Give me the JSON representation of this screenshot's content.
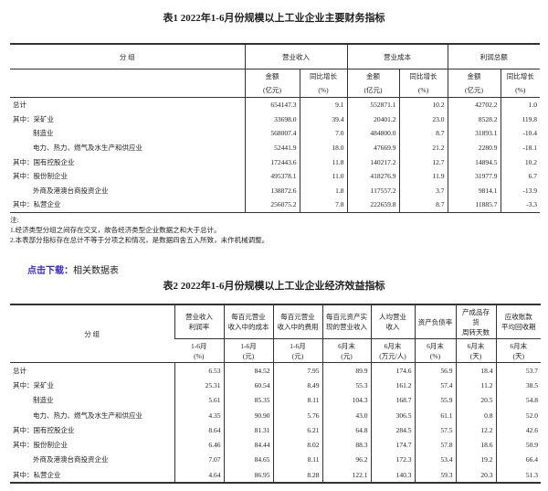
{
  "table1": {
    "title": "表1  2022年1-6月份规模以上工业企业主要财务指标",
    "group_header": "分    组",
    "col_groups": [
      "营业收入",
      "营业成本",
      "利润总额"
    ],
    "sub_headers": [
      {
        "l1": "金额",
        "l2": "(亿元)"
      },
      {
        "l1": "同比增长",
        "l2": "(%)"
      },
      {
        "l1": "金额",
        "l2": "(亿元)"
      },
      {
        "l1": "同比增长",
        "l2": "(%)"
      },
      {
        "l1": "金额",
        "l2": "(亿元)"
      },
      {
        "l1": "同比增长",
        "l2": "(%)"
      }
    ],
    "rows": [
      {
        "label": "总计",
        "indent": false,
        "values": [
          "654147.3",
          "9.1",
          "552871.1",
          "10.2",
          "42702.2",
          "1.0"
        ]
      },
      {
        "label": "其中：采矿业",
        "indent": false,
        "values": [
          "33698.0",
          "39.4",
          "20401.2",
          "23.0",
          "8528.2",
          "119.8"
        ]
      },
      {
        "label": "制造业",
        "indent": true,
        "values": [
          "568007.4",
          "7.0",
          "484800.0",
          "8.7",
          "31893.1",
          "-10.4"
        ]
      },
      {
        "label": "电力、热力、燃气及水生产和供应业",
        "indent": true,
        "values": [
          "52441.9",
          "18.0",
          "47669.9",
          "21.2",
          "2280.9",
          "-18.1"
        ]
      },
      {
        "label": "其中：国有控股企业",
        "indent": false,
        "values": [
          "172443.6",
          "11.8",
          "140217.2",
          "12.7",
          "14894.5",
          "10.2"
        ]
      },
      {
        "label": "其中：股份制企业",
        "indent": false,
        "values": [
          "495378.1",
          "11.0",
          "418276.9",
          "11.9",
          "31977.9",
          "6.7"
        ]
      },
      {
        "label": "外商及港澳台商投资企业",
        "indent": true,
        "values": [
          "138872.6",
          "1.8",
          "117557.2",
          "3.7",
          "9814.1",
          "-13.9"
        ]
      },
      {
        "label": "其中：私营企业",
        "indent": false,
        "values": [
          "256075.2",
          "7.8",
          "222659.8",
          "8.7",
          "11885.7",
          "-3.3"
        ]
      }
    ],
    "notes": [
      "注:",
      "1.经济类型分组之间存在交叉，故各经济类型企业数据之和大于总计。",
      "2.本表部分指标存在总计不等于分项之和情况，是数据四舍五入所致，未作机械调整。"
    ]
  },
  "download": {
    "link_label": "点击下载：",
    "text": "相关数据表"
  },
  "table2": {
    "title": "表2  2022年1-6月份规模以上工业企业经济效益指标",
    "group_header": "分    组",
    "headers": [
      {
        "l1": "营业收入",
        "l2": "利润率",
        "p1": "1-6月",
        "p2": "(%)"
      },
      {
        "l1": "每百元营业",
        "l2": "收入中的成本",
        "p1": "1-6月",
        "p2": "(元)"
      },
      {
        "l1": "每百元营业",
        "l2": "收入中的费用",
        "p1": "1-6月",
        "p2": "(元)"
      },
      {
        "l1": "每百元资产实",
        "l2": "现的营业收入",
        "p1": "6月末",
        "p2": "(元)"
      },
      {
        "l1": "人均营业",
        "l2": "收入",
        "p1": "6月末",
        "p2": "(万元/人)"
      },
      {
        "l1": "资产负债率",
        "l2": "",
        "p1": "6月末",
        "p2": "(%)"
      },
      {
        "l1": "产成品存货",
        "l2": "周转天数",
        "p1": "6月末",
        "p2": "(天)"
      },
      {
        "l1": "应收账款",
        "l2": "平均回收期",
        "p1": "6月末",
        "p2": "(天)"
      }
    ],
    "rows": [
      {
        "label": "总计",
        "indent": false,
        "values": [
          "6.53",
          "84.52",
          "7.95",
          "89.9",
          "174.6",
          "56.9",
          "18.4",
          "53.7"
        ]
      },
      {
        "label": "其中：采矿业",
        "indent": false,
        "values": [
          "25.31",
          "60.54",
          "8.49",
          "55.3",
          "161.2",
          "57.4",
          "11.2",
          "38.5"
        ]
      },
      {
        "label": "制造业",
        "indent": true,
        "values": [
          "5.61",
          "85.35",
          "8.11",
          "104.3",
          "168.7",
          "55.9",
          "20.5",
          "54.8"
        ]
      },
      {
        "label": "电力、热力、燃气及水生产和供应业",
        "indent": true,
        "values": [
          "4.35",
          "90.90",
          "5.76",
          "43.0",
          "306.5",
          "61.1",
          "0.8",
          "52.0"
        ]
      },
      {
        "label": "其中：国有控股企业",
        "indent": false,
        "values": [
          "8.64",
          "81.31",
          "6.21",
          "64.8",
          "284.5",
          "57.5",
          "12.2",
          "42.6"
        ]
      },
      {
        "label": "其中：股份制企业",
        "indent": false,
        "values": [
          "6.46",
          "84.44",
          "8.02",
          "88.3",
          "174.7",
          "57.8",
          "18.6",
          "50.9"
        ]
      },
      {
        "label": "外商及港澳台商投资企业",
        "indent": true,
        "values": [
          "7.07",
          "84.65",
          "8.11",
          "96.2",
          "172.3",
          "53.4",
          "19.2",
          "66.4"
        ]
      },
      {
        "label": "其中：私营企业",
        "indent": false,
        "values": [
          "4.64",
          "86.95",
          "8.28",
          "122.1",
          "140.3",
          "59.3",
          "20.3",
          "51.3"
        ]
      }
    ]
  }
}
